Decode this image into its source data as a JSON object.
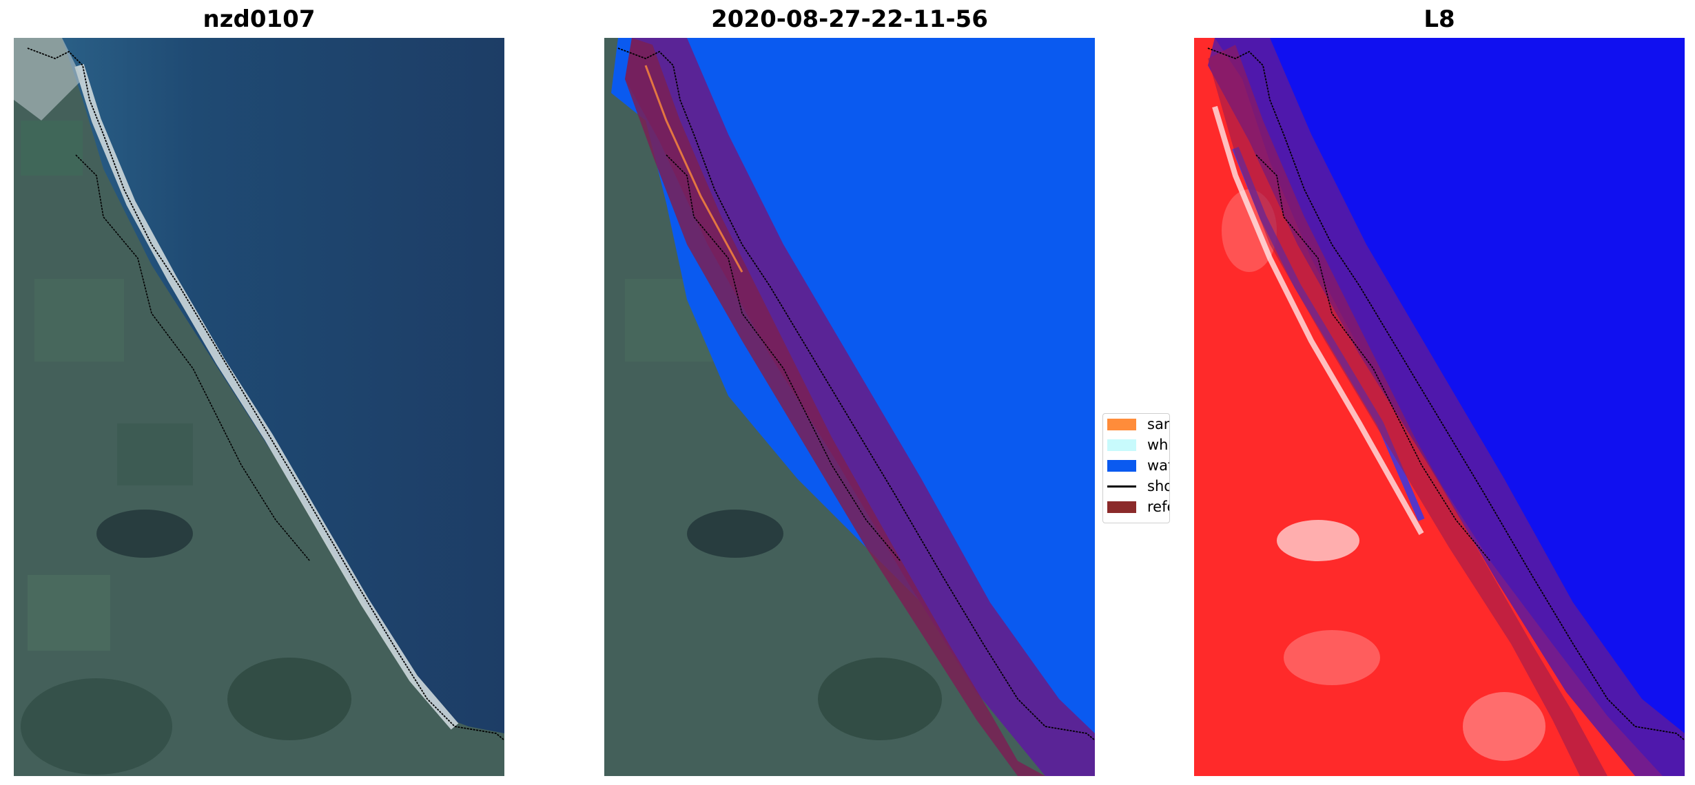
{
  "panels": [
    {
      "title": "nzd0107"
    },
    {
      "title": "2020-08-27-22-11-56"
    },
    {
      "title": "L8"
    }
  ],
  "legend": {
    "items": [
      {
        "label": "sand",
        "color": "#ff8c3a",
        "kind": "patch"
      },
      {
        "label": "whitewater",
        "color": "#c8fafc",
        "kind": "patch"
      },
      {
        "label": "water",
        "color": "#0a5af0",
        "kind": "patch"
      },
      {
        "label": "shoreline",
        "color": "#000000",
        "kind": "line"
      },
      {
        "label": "reference shoreline buffer",
        "color": "#8b2a2a",
        "kind": "patch"
      }
    ]
  },
  "colors": {
    "ocean_rgb": "#1f3f66",
    "land_rgb": "#3e5a52",
    "beach_rgb": "#c9d3d6",
    "water_class": "#0a5af0",
    "buffer": "#7a2055",
    "buffer_over_water": "#5a2496",
    "mndwi_land": "#ff2020",
    "mndwi_water": "#1010f0"
  }
}
